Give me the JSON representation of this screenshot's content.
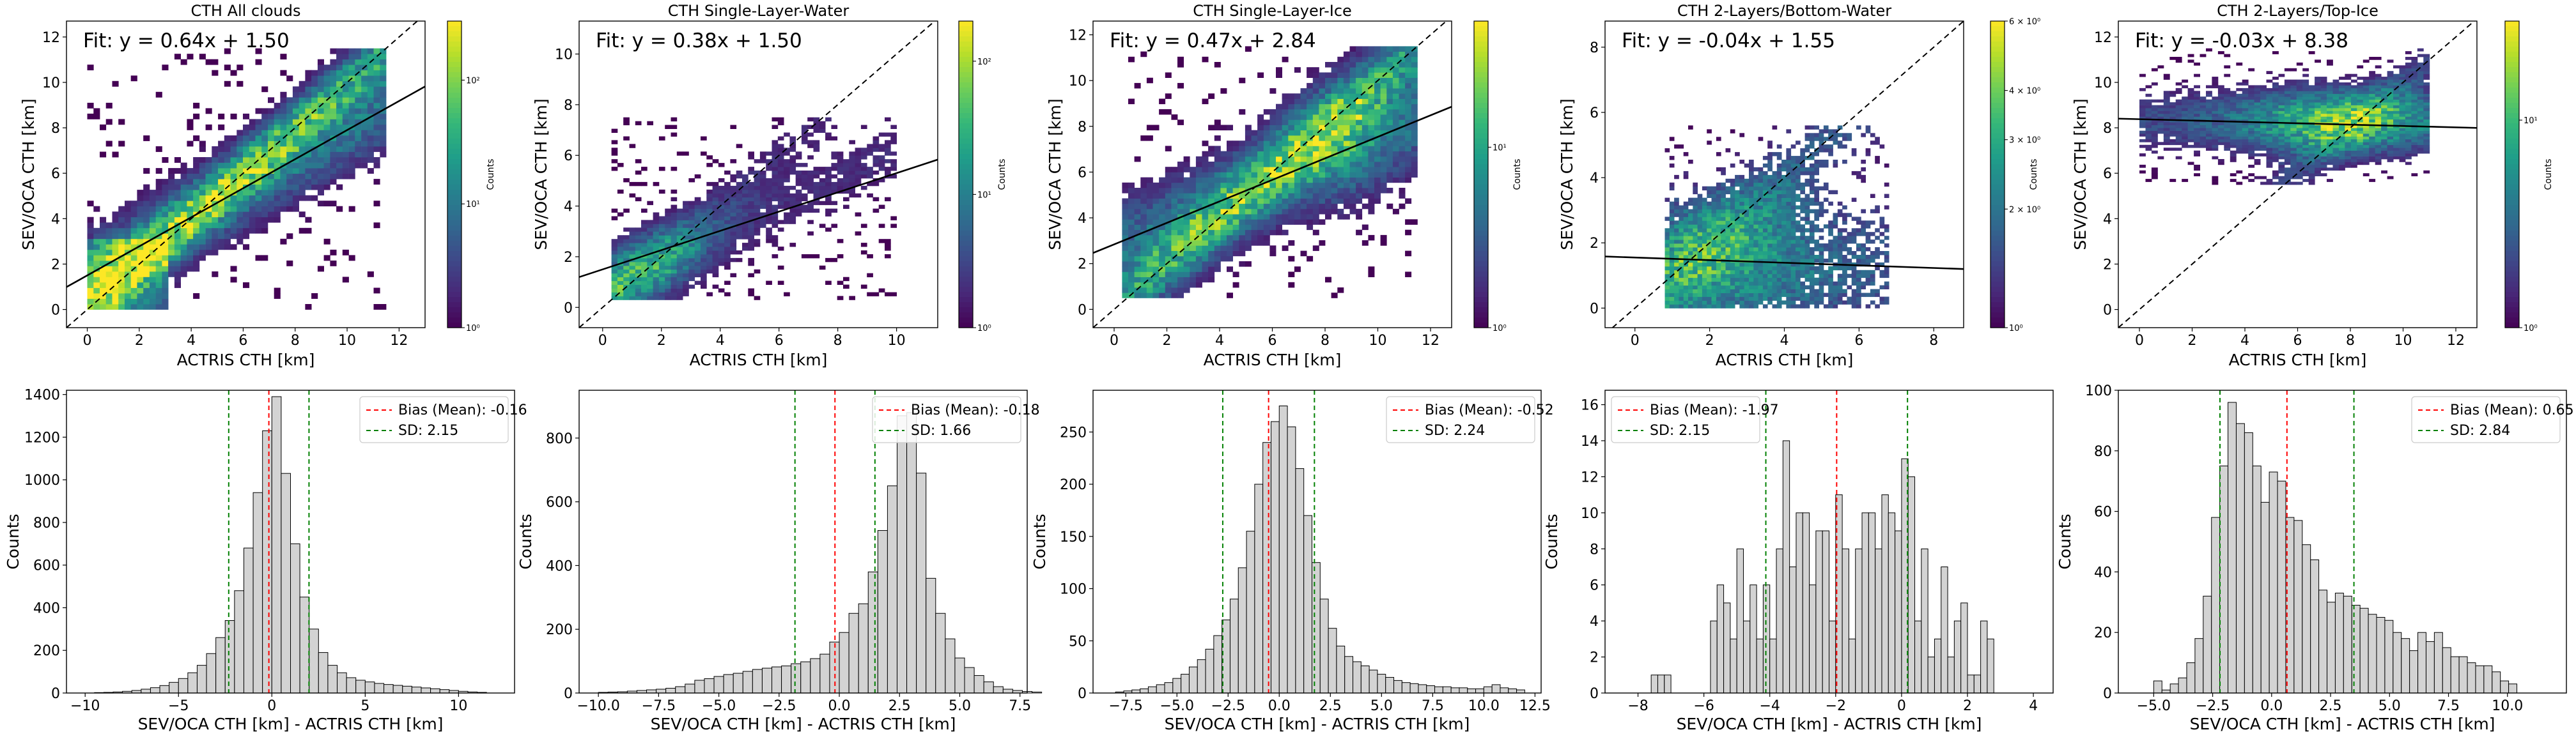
{
  "figure": {
    "colorbar_label": "Counts",
    "colors": {
      "viridis": [
        "#440154",
        "#482878",
        "#3e4989",
        "#31688e",
        "#26828e",
        "#1f9e89",
        "#35b779",
        "#6ece58",
        "#b5de2b",
        "#fde725"
      ],
      "hist_fill": "#d3d3d3",
      "hist_edge": "#000000",
      "bias_line": "#ff0000",
      "sd_line": "#008000",
      "fit_line": "#000000",
      "identity_line": "#000000"
    }
  },
  "chart_data": [
    {
      "type": "heatmap",
      "title": "CTH All clouds",
      "xlabel": "ACTRIS CTH [km]",
      "ylabel": "SEV/OCA CTH [km]",
      "xlim": [
        -0.8,
        13
      ],
      "ylim": [
        -0.8,
        12.7
      ],
      "xticks": [
        0,
        2,
        4,
        6,
        8,
        10,
        12
      ],
      "yticks": [
        0,
        2,
        4,
        6,
        8,
        10,
        12
      ],
      "fit_label": "Fit: y = 0.64x + 1.50",
      "fit": {
        "slope": 0.64,
        "intercept": 1.5
      },
      "identity_line": true,
      "colorbar": {
        "scale": "log",
        "min": 1,
        "max": 300,
        "ticks": [
          {
            "value": 1,
            "label": "10⁰"
          },
          {
            "value": 10,
            "label": "10¹"
          },
          {
            "value": 100,
            "label": "10²"
          }
        ]
      },
      "density": {
        "profile": "diag_plus_fit",
        "xr": [
          0,
          11.5
        ],
        "yr": [
          0,
          11.5
        ],
        "peak": 300,
        "base": 0.6,
        "spread": 1.3,
        "cutoff": 0.35,
        "seed": 11
      }
    },
    {
      "type": "heatmap",
      "title": "CTH Single-Layer-Water",
      "xlabel": "ACTRIS CTH [km]",
      "ylabel": "SEV/OCA CTH [km]",
      "xlim": [
        -0.8,
        11.4
      ],
      "ylim": [
        -0.8,
        11.3
      ],
      "xticks": [
        0,
        2,
        4,
        6,
        8,
        10
      ],
      "yticks": [
        0,
        2,
        4,
        6,
        8,
        10
      ],
      "fit_label": "Fit: y = 0.38x + 1.50",
      "fit": {
        "slope": 0.38,
        "intercept": 1.5
      },
      "identity_line": true,
      "colorbar": {
        "scale": "log",
        "min": 1,
        "max": 200,
        "ticks": [
          {
            "value": 1,
            "label": "10⁰"
          },
          {
            "value": 10,
            "label": "10¹"
          },
          {
            "value": 100,
            "label": "10²"
          }
        ]
      },
      "density": {
        "profile": "low_water",
        "xr": [
          0.3,
          10
        ],
        "yr": [
          0.3,
          7.5
        ],
        "peak": 200,
        "base": 0.5,
        "spread": 1.0,
        "cutoff": 0.45,
        "seed": 23
      }
    },
    {
      "type": "heatmap",
      "title": "CTH Single-Layer-Ice",
      "xlabel": "ACTRIS CTH [km]",
      "ylabel": "SEV/OCA CTH [km]",
      "xlim": [
        -0.8,
        12.8
      ],
      "ylim": [
        -0.8,
        12.6
      ],
      "xticks": [
        0,
        2,
        4,
        6,
        8,
        10,
        12
      ],
      "yticks": [
        0,
        2,
        4,
        6,
        8,
        10,
        12
      ],
      "fit_label": "Fit: y = 0.47x + 2.84",
      "fit": {
        "slope": 0.47,
        "intercept": 2.84
      },
      "identity_line": true,
      "colorbar": {
        "scale": "log",
        "min": 1,
        "max": 50,
        "ticks": [
          {
            "value": 1,
            "label": "10⁰"
          },
          {
            "value": 10,
            "label": "10¹"
          }
        ]
      },
      "density": {
        "profile": "ice",
        "xr": [
          0.3,
          11.5
        ],
        "yr": [
          0.5,
          11.5
        ],
        "peak": 50,
        "base": 0.6,
        "spread": 1.4,
        "cutoff": 0.4,
        "seed": 37
      }
    },
    {
      "type": "heatmap",
      "title": "CTH 2-Layers/Bottom-Water",
      "xlabel": "ACTRIS CTH [km]",
      "ylabel": "SEV/OCA CTH [km]",
      "xlim": [
        -0.8,
        8.8
      ],
      "ylim": [
        -0.6,
        8.8
      ],
      "xticks": [
        0,
        2,
        4,
        6,
        8
      ],
      "yticks": [
        0,
        2,
        4,
        6,
        8
      ],
      "fit_label": "Fit: y = -0.04x + 1.55",
      "fit": {
        "slope": -0.04,
        "intercept": 1.55
      },
      "identity_line": true,
      "colorbar": {
        "scale": "log",
        "min": 1,
        "max": 6,
        "ticks": [
          {
            "value": 1,
            "label": "10⁰"
          },
          {
            "value": 2,
            "label": "2 × 10⁰"
          },
          {
            "value": 3,
            "label": "3 × 10⁰"
          },
          {
            "value": 4,
            "label": "4 × 10⁰"
          },
          {
            "value": 6,
            "label": "6 × 10⁰"
          }
        ]
      },
      "density": {
        "profile": "bottom_water",
        "xr": [
          0.8,
          6.8
        ],
        "yr": [
          0,
          5.6
        ],
        "peak": 6,
        "base": 0.8,
        "spread": 1.0,
        "cutoff": 0.7,
        "seed": 51
      }
    },
    {
      "type": "heatmap",
      "title": "CTH 2-Layers/Top-Ice",
      "xlabel": "ACTRIS CTH [km]",
      "ylabel": "SEV/OCA CTH [km]",
      "xlim": [
        -0.8,
        12.8
      ],
      "ylim": [
        -0.8,
        12.7
      ],
      "xticks": [
        0,
        2,
        4,
        6,
        8,
        10,
        12
      ],
      "yticks": [
        0,
        2,
        4,
        6,
        8,
        10,
        12
      ],
      "fit_label": "Fit: y = -0.03x + 8.38",
      "fit": {
        "slope": -0.03,
        "intercept": 8.38
      },
      "identity_line": true,
      "colorbar": {
        "scale": "log",
        "min": 1,
        "max": 30,
        "ticks": [
          {
            "value": 1,
            "label": "10⁰"
          },
          {
            "value": 10,
            "label": "10¹"
          }
        ]
      },
      "density": {
        "profile": "top_ice",
        "xr": [
          0,
          11
        ],
        "yr": [
          5.5,
          11.5
        ],
        "peak": 30,
        "base": 0.7,
        "spread": 1.0,
        "cutoff": 0.45,
        "seed": 67
      }
    },
    {
      "type": "bar",
      "xlabel": "SEV/OCA CTH [km] - ACTRIS CTH [km]",
      "ylabel": "Counts",
      "xlim": [
        -11,
        13
      ],
      "ylim": [
        0,
        1420
      ],
      "xticks": [
        -10,
        -5,
        0,
        5,
        10
      ],
      "yticks": [
        0,
        200,
        400,
        600,
        800,
        1000,
        1200,
        1400
      ],
      "bin_start": -9.5,
      "bin_width": 0.5,
      "values": [
        2,
        3,
        5,
        8,
        12,
        18,
        25,
        35,
        50,
        68,
        95,
        130,
        185,
        260,
        340,
        480,
        680,
        940,
        1230,
        1390,
        1030,
        700,
        450,
        300,
        190,
        130,
        95,
        72,
        60,
        52,
        45,
        40,
        36,
        32,
        28,
        24,
        20,
        16,
        12,
        8,
        5,
        3
      ],
      "bias": -0.16,
      "sd": 2.15,
      "legend": {
        "position": "top-right",
        "bias_label": "Bias (Mean): -0.16",
        "sd_label": "SD: 2.15"
      }
    },
    {
      "type": "bar",
      "xlabel": "SEV/OCA CTH [km] - ACTRIS CTH [km]",
      "ylabel": "Counts",
      "xlim": [
        -10.8,
        7.8
      ],
      "ylim": [
        0,
        950
      ],
      "xticks": [
        -10.0,
        -7.5,
        -5.0,
        -2.5,
        0.0,
        2.5,
        5.0,
        7.5
      ],
      "xtick_labels": [
        "−10.0",
        "−7.5",
        "−5.0",
        "−2.5",
        "0.0",
        "2.5",
        "5.0",
        "7.5"
      ],
      "yticks": [
        0,
        200,
        400,
        600,
        800
      ],
      "bin_start": -10,
      "bin_width": 0.4,
      "values": [
        2,
        3,
        4,
        6,
        8,
        10,
        12,
        15,
        20,
        28,
        40,
        45,
        52,
        58,
        62,
        68,
        74,
        78,
        82,
        85,
        92,
        98,
        108,
        122,
        160,
        190,
        250,
        280,
        380,
        510,
        650,
        870,
        880,
        690,
        360,
        250,
        170,
        110,
        80,
        55,
        35,
        20,
        12,
        8,
        5,
        3
      ],
      "bias": -0.18,
      "sd": 1.66,
      "legend": {
        "position": "top-right",
        "bias_label": "Bias (Mean): -0.18",
        "sd_label": "SD: 1.66"
      }
    },
    {
      "type": "bar",
      "xlabel": "SEV/OCA CTH [km] - ACTRIS CTH [km]",
      "ylabel": "Counts",
      "xlim": [
        -9.1,
        12.8
      ],
      "ylim": [
        0,
        290
      ],
      "xticks": [
        -7.5,
        -5.0,
        -2.5,
        0.0,
        2.5,
        5.0,
        7.5,
        10.0,
        12.5
      ],
      "xtick_labels": [
        "−7.5",
        "−5.0",
        "−2.5",
        "0.0",
        "2.5",
        "5.0",
        "7.5",
        "10.0",
        "12.5"
      ],
      "yticks": [
        0,
        50,
        100,
        150,
        200,
        250
      ],
      "bin_start": -8,
      "bin_width": 0.4,
      "values": [
        1,
        2,
        3,
        4,
        6,
        8,
        10,
        14,
        18,
        25,
        32,
        42,
        55,
        70,
        90,
        120,
        155,
        200,
        240,
        260,
        275,
        255,
        215,
        170,
        125,
        90,
        62,
        45,
        35,
        30,
        26,
        22,
        18,
        15,
        12,
        10,
        9,
        8,
        7,
        6,
        6,
        5,
        5,
        4,
        4,
        6,
        8,
        5,
        4,
        3
      ],
      "bias": -0.52,
      "sd": 2.24,
      "legend": {
        "position": "top-right",
        "bias_label": "Bias (Mean): -0.52",
        "sd_label": "SD: 2.24"
      }
    },
    {
      "type": "bar",
      "xlabel": "SEV/OCA CTH [km] - ACTRIS CTH [km]",
      "ylabel": "Counts",
      "xlim": [
        -9,
        4.6
      ],
      "ylim": [
        0,
        16.8
      ],
      "xticks": [
        -8,
        -6,
        -4,
        -2,
        0,
        2,
        4
      ],
      "yticks": [
        0,
        2,
        4,
        6,
        8,
        10,
        12,
        14,
        16
      ],
      "bin_start": -7.6,
      "bin_width": 0.2,
      "values": [
        1,
        1,
        1,
        0,
        0,
        0,
        0,
        0,
        0,
        4,
        6,
        5,
        3,
        8,
        4,
        6,
        3,
        6,
        3,
        8,
        14,
        7,
        10,
        10,
        6,
        9,
        9,
        4,
        11,
        8,
        3,
        8,
        10,
        10,
        8,
        11,
        10,
        9,
        13,
        12,
        4,
        8,
        2,
        3,
        7,
        2,
        4,
        5,
        1,
        1,
        4,
        3
      ],
      "bias": -1.97,
      "sd": 2.15,
      "legend": {
        "position": "top-left",
        "bias_label": "Bias (Mean): -1.97",
        "sd_label": "SD: 2.15"
      }
    },
    {
      "type": "bar",
      "xlabel": "SEV/OCA CTH [km] - ACTRIS CTH [km]",
      "ylabel": "Counts",
      "xlim": [
        -6.5,
        12.5
      ],
      "ylim": [
        0,
        100
      ],
      "xticks": [
        -5.0,
        -2.5,
        0.0,
        2.5,
        5.0,
        7.5,
        10.0
      ],
      "xtick_labels": [
        "−5.0",
        "−2.5",
        "0.0",
        "2.5",
        "5.0",
        "7.5",
        "10.0"
      ],
      "yticks": [
        0,
        20,
        40,
        60,
        80,
        100
      ],
      "bin_start": -5,
      "bin_width": 0.35,
      "values": [
        4,
        1,
        3,
        5,
        10,
        18,
        32,
        58,
        75,
        96,
        89,
        86,
        75,
        63,
        73,
        70,
        58,
        57,
        49,
        44,
        34,
        30,
        33,
        32,
        29,
        28,
        26,
        25,
        24,
        20,
        18,
        14,
        20,
        17,
        20,
        15,
        12,
        12,
        10,
        9,
        9,
        7,
        4,
        3
      ],
      "bias": 0.65,
      "sd": 2.84,
      "legend": {
        "position": "top-right",
        "bias_label": "Bias (Mean): 0.65",
        "sd_label": "SD: 2.84"
      }
    }
  ]
}
